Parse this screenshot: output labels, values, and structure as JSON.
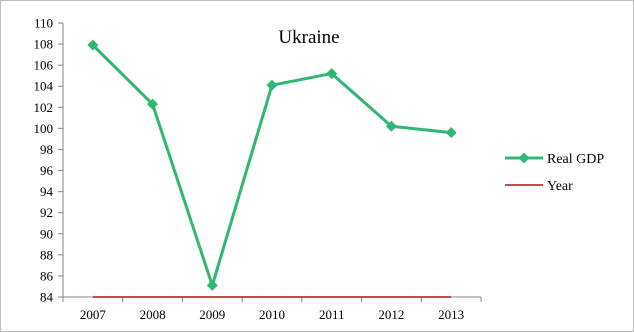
{
  "chart_data": {
    "type": "line",
    "title": "Ukraine",
    "categories": [
      "2007",
      "2008",
      "2009",
      "2010",
      "2011",
      "2012",
      "2013"
    ],
    "series": [
      {
        "name": "Real GDP",
        "values": [
          107.9,
          102.3,
          85.1,
          104.1,
          105.2,
          100.2,
          99.6
        ],
        "color": "#2eb872",
        "marker": "diamond"
      },
      {
        "name": "Year",
        "values": [
          84,
          84,
          84,
          84,
          84,
          84,
          84
        ],
        "color": "#c0504d",
        "marker": "none"
      }
    ],
    "ylim": [
      84,
      110
    ],
    "yticks": [
      "84",
      "86",
      "88",
      "90",
      "92",
      "94",
      "96",
      "98",
      "100",
      "102",
      "104",
      "106",
      "108",
      "110"
    ],
    "grid": false,
    "legend": "right"
  }
}
